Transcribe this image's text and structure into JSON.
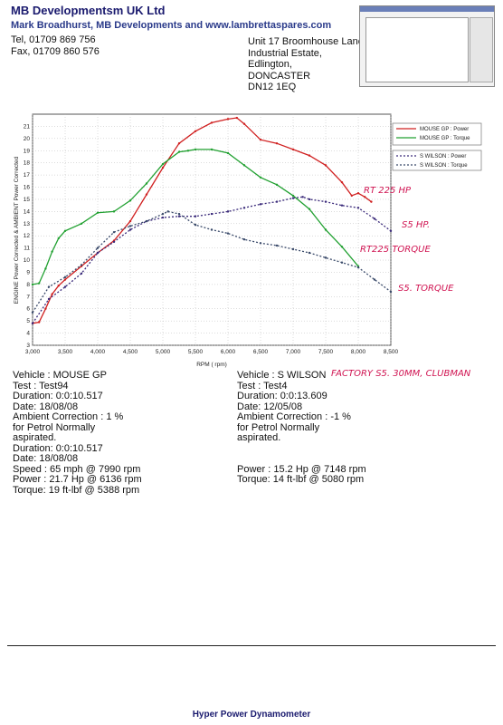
{
  "header": {
    "company": "MB Developmentsm UK Ltd",
    "subline": "Mark Broadhurst, MB Developments and www.lambrettaspares.com",
    "tel": "Tel, 01709 869 756",
    "fax": "Fax, 01709 860 576",
    "address": [
      "Unit 17 Broomhouse Lane",
      "Industrial Estate,",
      "Edlington,",
      "DONCASTER",
      "DN12 1EQ"
    ]
  },
  "colors": {
    "mouse_power": "#d02020",
    "mouse_torque": "#20a030",
    "wilson_power": "#3a2a7a",
    "wilson_torque": "#3a4a6a",
    "handwriting": "#d01452",
    "plot_bg": "#ffffff"
  },
  "chart_data": {
    "type": "line",
    "ylabel": "ENGINE Power Corrected & AMBIENT Power Corrected",
    "xlabel": "RPM ( rpm)",
    "xlim": [
      3000,
      8500
    ],
    "ylim": [
      3,
      22
    ],
    "x_ticks": [
      "3,000",
      "3,500",
      "4,000",
      "4,500",
      "5,000",
      "5,500",
      "6,000",
      "6,500",
      "7,000",
      "7,500",
      "8,000",
      "8,500"
    ],
    "y_ticks": [
      "3",
      "4",
      "5",
      "6",
      "7",
      "8",
      "9",
      "10",
      "11",
      "12",
      "13",
      "14",
      "15",
      "16",
      "17",
      "18",
      "19",
      "20",
      "21"
    ],
    "grid": true,
    "legend_position": "right",
    "series": [
      {
        "name": "MOUSE GP : Power",
        "color_key": "mouse_power",
        "x": [
          3000,
          3100,
          3200,
          3300,
          3400,
          3500,
          3750,
          4000,
          4250,
          4500,
          4750,
          5000,
          5250,
          5500,
          5750,
          6000,
          6136,
          6250,
          6500,
          6750,
          7000,
          7250,
          7500,
          7750,
          7900,
          8000,
          8100,
          8200
        ],
        "y": [
          4.8,
          4.9,
          6.0,
          7.2,
          7.9,
          8.4,
          9.5,
          10.6,
          11.6,
          13.2,
          15.4,
          17.6,
          19.6,
          20.6,
          21.3,
          21.6,
          21.7,
          21.2,
          19.9,
          19.6,
          19.1,
          18.6,
          17.8,
          16.4,
          15.3,
          15.5,
          15.2,
          14.8
        ]
      },
      {
        "name": "MOUSE GP : Torque",
        "color_key": "mouse_torque",
        "x": [
          3000,
          3100,
          3200,
          3300,
          3400,
          3500,
          3750,
          4000,
          4250,
          4500,
          4750,
          5000,
          5250,
          5388,
          5500,
          5750,
          6000,
          6250,
          6500,
          6750,
          7000,
          7250,
          7500,
          7750,
          8000
        ],
        "y": [
          8.0,
          8.1,
          9.3,
          10.7,
          11.8,
          12.4,
          13.0,
          13.9,
          14.0,
          14.9,
          16.3,
          17.9,
          18.9,
          19.0,
          19.1,
          19.1,
          18.8,
          17.8,
          16.8,
          16.2,
          15.3,
          14.2,
          12.5,
          11.1,
          9.5
        ]
      },
      {
        "name": "S WILSON : Power",
        "color_key": "wilson_power",
        "x": [
          3000,
          3250,
          3500,
          3750,
          4000,
          4250,
          4500,
          4750,
          5000,
          5250,
          5500,
          5750,
          6000,
          6250,
          6500,
          6750,
          7000,
          7148,
          7250,
          7500,
          7750,
          8000,
          8250,
          8500
        ],
        "y": [
          4.8,
          6.8,
          7.8,
          8.9,
          10.6,
          11.5,
          12.5,
          13.2,
          13.5,
          13.6,
          13.6,
          13.8,
          14.0,
          14.3,
          14.6,
          14.8,
          15.1,
          15.2,
          15.0,
          14.8,
          14.5,
          14.3,
          13.4,
          12.4
        ]
      },
      {
        "name": "S WILSON : Torque",
        "color_key": "wilson_torque",
        "x": [
          3000,
          3250,
          3500,
          3750,
          4000,
          4250,
          4500,
          4750,
          5000,
          5080,
          5250,
          5500,
          5750,
          6000,
          6250,
          6500,
          6750,
          7000,
          7250,
          7500,
          7750,
          8000,
          8250,
          8500
        ],
        "y": [
          5.7,
          7.8,
          8.6,
          9.6,
          11.0,
          12.3,
          12.8,
          13.2,
          13.8,
          14.0,
          13.8,
          12.9,
          12.5,
          12.2,
          11.7,
          11.4,
          11.2,
          10.9,
          10.6,
          10.2,
          9.8,
          9.4,
          8.4,
          7.4
        ]
      }
    ]
  },
  "annotations": {
    "rt225_hp": "RT 225 HP",
    "s5_hp": "S5 HP.",
    "rt225_torque": "RT225 TORQUE",
    "s5_torque": "S5. TORQUE",
    "factory_note": "FACTORY S5. 30MM, CLUBMAN"
  },
  "left_info": {
    "vehicle": "Vehicle : MOUSE GP",
    "test": "Test    : Test94",
    "duration": "Duration: 0:0:10.517",
    "date": "Date: 18/08/08",
    "ambient": "Ambient Correction : 1 %",
    "petrol_1": " for Petrol Normally",
    "petrol_2": "aspirated.",
    "duration2": "Duration: 0:0:10.517",
    "date2": "Date: 18/08/08",
    "speed": "Speed : 65 mph @ 7990 rpm",
    "power": "Power : 21.7 Hp @ 6136 rpm",
    "torque": "Torque: 19 ft-lbf @ 5388 rpm"
  },
  "right_info": {
    "vehicle": "Vehicle : S WILSON",
    "test": "Test    : Test4",
    "duration": "Duration: 0:0:13.609",
    "date": "Date: 12/05/08",
    "ambient": "Ambient Correction : -1 %",
    "petrol_1": " for Petrol Normally",
    "petrol_2": "aspirated.",
    "power": "Power : 15.2 Hp @ 7148 rpm",
    "torque": "Torque: 14 ft-lbf @ 5080 rpm"
  },
  "footer": "Hyper Power Dynamometer"
}
